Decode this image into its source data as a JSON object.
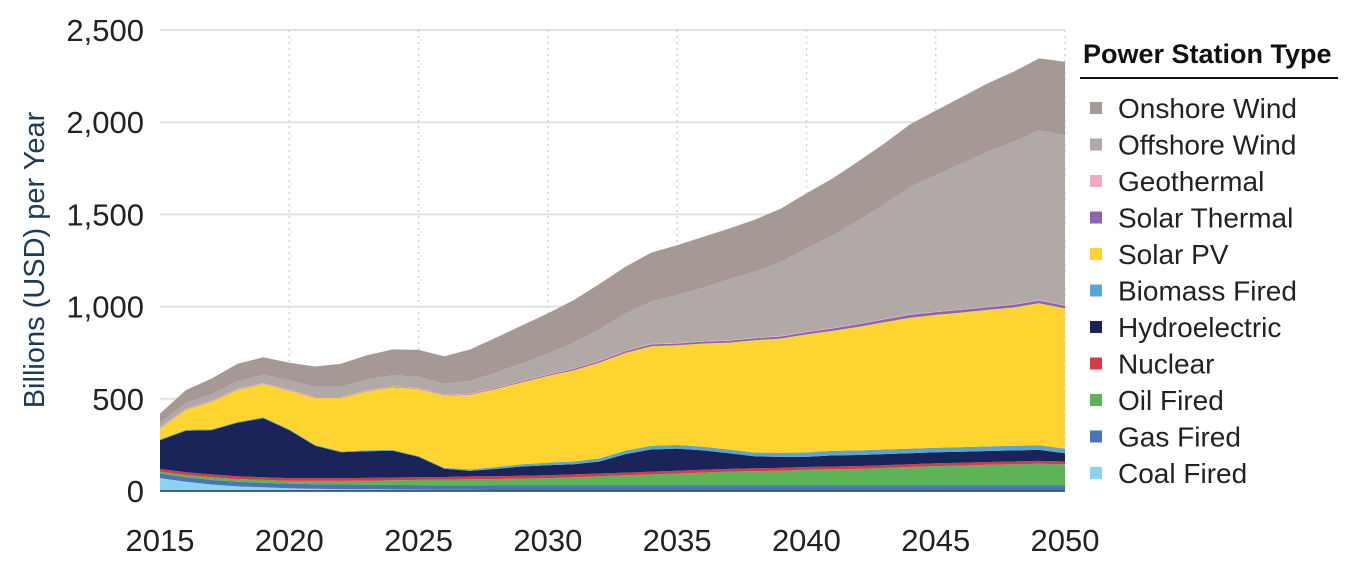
{
  "chart_data": {
    "type": "area",
    "stacked": true,
    "ylabel": "Billions  (USD) per Year",
    "xlabel": "",
    "x": [
      2015,
      2016,
      2017,
      2018,
      2019,
      2020,
      2021,
      2022,
      2023,
      2024,
      2025,
      2026,
      2027,
      2028,
      2029,
      2030,
      2031,
      2032,
      2033,
      2034,
      2035,
      2036,
      2037,
      2038,
      2039,
      2040,
      2041,
      2042,
      2043,
      2044,
      2045,
      2046,
      2047,
      2048,
      2049,
      2050
    ],
    "xticks": [
      "2015",
      "2020",
      "2025",
      "2030",
      "2035",
      "2040",
      "2045",
      "2050"
    ],
    "xlim": [
      2015,
      2050
    ],
    "ylim": [
      0,
      2500
    ],
    "yticks": [
      "0",
      "500",
      "1,000",
      "1,500",
      "2,000",
      "2,500"
    ],
    "grid": true,
    "legend": {
      "title": "Power Station Type",
      "placement": "right",
      "order": [
        "Onshore Wind",
        "Offshore Wind",
        "Geothermal",
        "Solar Thermal",
        "Solar PV",
        "Biomass Fired",
        "Hydroelectric",
        "Nuclear",
        "Oil Fired",
        "Gas Fired",
        "Coal Fired"
      ]
    },
    "series": [
      {
        "name": "Coal Fired",
        "color": "#8dd3f0",
        "values": [
          70,
          50,
          35,
          25,
          20,
          15,
          12,
          10,
          9,
          8,
          7,
          6,
          6,
          5,
          5,
          5,
          5,
          5,
          5,
          5,
          5,
          5,
          5,
          5,
          5,
          5,
          5,
          5,
          5,
          5,
          5,
          5,
          5,
          5,
          5,
          5
        ]
      },
      {
        "name": "Gas Fired",
        "color": "#4a74b7",
        "values": [
          25,
          25,
          25,
          25,
          25,
          25,
          25,
          25,
          25,
          25,
          25,
          25,
          25,
          25,
          25,
          25,
          25,
          25,
          25,
          25,
          25,
          25,
          25,
          25,
          25,
          25,
          25,
          25,
          25,
          25,
          25,
          25,
          25,
          25,
          25,
          25
        ]
      },
      {
        "name": "Oil Fired",
        "color": "#5db456",
        "values": [
          10,
          12,
          15,
          15,
          15,
          15,
          18,
          20,
          22,
          25,
          28,
          30,
          33,
          35,
          38,
          40,
          45,
          50,
          55,
          60,
          65,
          70,
          75,
          78,
          80,
          85,
          88,
          90,
          95,
          100,
          105,
          108,
          112,
          115,
          118,
          115
        ]
      },
      {
        "name": "Nuclear",
        "color": "#d63a47",
        "values": [
          15,
          15,
          15,
          15,
          15,
          15,
          15,
          15,
          15,
          15,
          15,
          15,
          15,
          15,
          15,
          15,
          15,
          15,
          15,
          15,
          15,
          15,
          15,
          15,
          15,
          15,
          15,
          15,
          15,
          15,
          15,
          15,
          15,
          15,
          15,
          15
        ]
      },
      {
        "name": "Hydroelectric",
        "color": "#1b2459",
        "values": [
          155,
          225,
          240,
          290,
          320,
          260,
          175,
          140,
          145,
          145,
          110,
          45,
          30,
          40,
          50,
          55,
          55,
          65,
          100,
          120,
          120,
          105,
          85,
          65,
          60,
          55,
          60,
          60,
          60,
          60,
          60,
          60,
          60,
          60,
          60,
          45
        ]
      },
      {
        "name": "Biomass Fired",
        "color": "#5aa5d6",
        "values": [
          5,
          5,
          5,
          5,
          5,
          5,
          5,
          5,
          5,
          5,
          5,
          5,
          8,
          10,
          12,
          14,
          15,
          17,
          19,
          20,
          20,
          20,
          20,
          20,
          22,
          24,
          25,
          25,
          25,
          25,
          25,
          25,
          25,
          25,
          25,
          25
        ]
      },
      {
        "name": "Solar PV",
        "color": "#fed430",
        "values": [
          60,
          110,
          150,
          175,
          180,
          210,
          255,
          290,
          320,
          340,
          365,
          390,
          405,
          425,
          445,
          470,
          495,
          520,
          530,
          540,
          540,
          560,
          580,
          610,
          620,
          640,
          650,
          670,
          690,
          710,
          720,
          730,
          740,
          750,
          770,
          760
        ]
      },
      {
        "name": "Solar Thermal",
        "color": "#8a65b0",
        "values": [
          2,
          2,
          2,
          2,
          2,
          2,
          2,
          2,
          2,
          2,
          2,
          2,
          3,
          4,
          5,
          6,
          7,
          8,
          9,
          10,
          10,
          10,
          10,
          10,
          11,
          12,
          13,
          14,
          15,
          15,
          15,
          15,
          15,
          15,
          15,
          15
        ]
      },
      {
        "name": "Geothermal",
        "color": "#f2a8c2",
        "values": [
          3,
          3,
          3,
          3,
          3,
          3,
          3,
          3,
          3,
          3,
          3,
          3,
          3,
          3,
          3,
          3,
          3,
          3,
          3,
          3,
          3,
          3,
          3,
          3,
          3,
          3,
          3,
          3,
          3,
          3,
          3,
          3,
          3,
          3,
          3,
          3
        ]
      },
      {
        "name": "Offshore Wind",
        "color": "#b1a9a6",
        "values": [
          25,
          30,
          35,
          40,
          45,
          50,
          55,
          55,
          60,
          60,
          60,
          60,
          70,
          80,
          95,
          110,
          140,
          170,
          200,
          230,
          260,
          290,
          330,
          360,
          400,
          450,
          500,
          560,
          620,
          690,
          740,
          790,
          840,
          880,
          920,
          920
        ]
      },
      {
        "name": "Onshore Wind",
        "color": "#a69995",
        "values": [
          50,
          70,
          85,
          95,
          95,
          95,
          110,
          125,
          130,
          140,
          145,
          150,
          170,
          190,
          205,
          220,
          230,
          245,
          255,
          265,
          270,
          275,
          275,
          280,
          290,
          300,
          310,
          320,
          330,
          340,
          350,
          360,
          370,
          380,
          390,
          400
        ]
      }
    ]
  }
}
